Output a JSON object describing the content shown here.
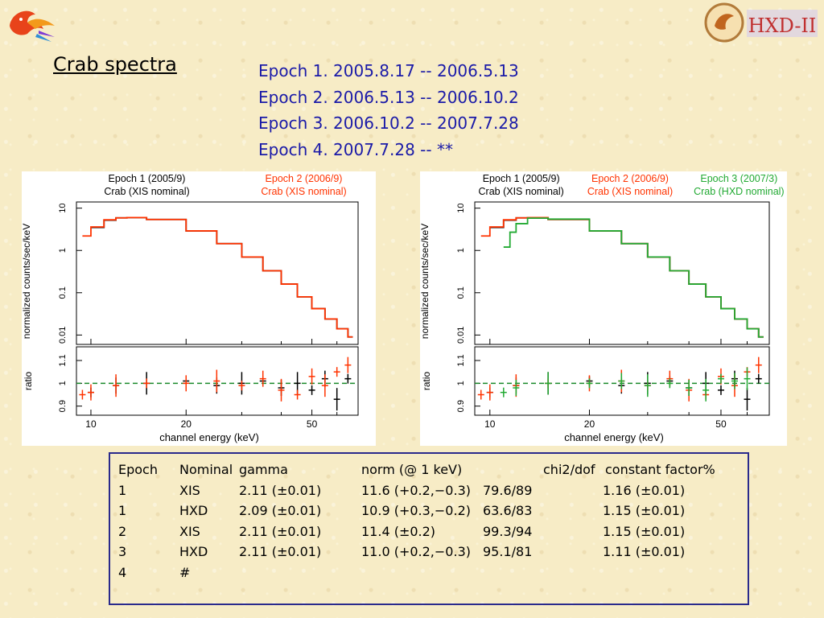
{
  "title": "Crab spectra",
  "epochs": [
    "Epoch 1. 2005.8.17 -- 2006.5.13",
    "Epoch 2. 2006.5.13 -- 2006.10.2",
    "Epoch 3. 2006.10.2 -- 2007.7.28",
    "Epoch 4. 2007.7.28 -- **"
  ],
  "logos": {
    "left": "bird-logo",
    "right_text": "HXD-II"
  },
  "chart_data": [
    {
      "type": "line",
      "legend": [
        {
          "line1": "Epoch 1 (2005/9)",
          "line2": "Crab (XIS nominal)",
          "color": "#000000"
        },
        {
          "line1": "Epoch 2 (2006/9)",
          "line2": "Crab (XIS nominal)",
          "color": "#ff3300"
        }
      ],
      "ylabel_top": "normalized counts/sec/keV",
      "ylabel_bottom": "ratio",
      "xlabel": "channel energy (keV)",
      "x_scale": "log",
      "xlim": [
        9,
        70
      ],
      "x_ticks": [
        "10",
        "20",
        "50"
      ],
      "ytop_scale": "log",
      "ytop_ticks": [
        "10",
        "1",
        "0.1",
        "0.01"
      ],
      "ybot_ticks": [
        "1.1",
        "1",
        "0.9"
      ],
      "series": [
        {
          "color": "#000000",
          "x": [
            10,
            11,
            12,
            13,
            15,
            20,
            25,
            30,
            35,
            40,
            45,
            50,
            55,
            60,
            65
          ],
          "y": [
            3.5,
            5.2,
            5.9,
            6.0,
            5.4,
            2.9,
            1.45,
            0.7,
            0.33,
            0.16,
            0.08,
            0.042,
            0.024,
            0.014,
            0.009
          ]
        },
        {
          "color": "#ff3300",
          "x": [
            9.4,
            10,
            11,
            12,
            13,
            15,
            20,
            25,
            30,
            35,
            40,
            45,
            50,
            55,
            60,
            65
          ],
          "y": [
            2.2,
            3.6,
            5.3,
            5.9,
            6.0,
            5.4,
            2.9,
            1.45,
            0.7,
            0.33,
            0.16,
            0.08,
            0.042,
            0.024,
            0.014,
            0.009
          ]
        }
      ],
      "ratio_series": [
        {
          "color": "#000000",
          "x": [
            10,
            12,
            15,
            20,
            25,
            30,
            35,
            40,
            45,
            50,
            55,
            60,
            65
          ],
          "y": [
            0.96,
            0.99,
            1.0,
            1.01,
            0.99,
            1.0,
            1.01,
            0.98,
            1.0,
            0.97,
            1.02,
            0.93,
            1.02
          ]
        },
        {
          "color": "#ff3300",
          "x": [
            9.4,
            10,
            12,
            15,
            20,
            25,
            30,
            35,
            40,
            45,
            50,
            55,
            60,
            65
          ],
          "y": [
            0.95,
            0.96,
            0.99,
            1.0,
            1.0,
            1.01,
            0.99,
            1.02,
            0.97,
            0.95,
            1.03,
            0.99,
            1.05,
            1.08
          ]
        }
      ],
      "ratio_reference": 1.0
    },
    {
      "type": "line",
      "legend": [
        {
          "line1": "Epoch 1 (2005/9)",
          "line2": "Crab (XIS nominal)",
          "color": "#000000"
        },
        {
          "line1": "Epoch 2 (2006/9)",
          "line2": "Crab (XIS nominal)",
          "color": "#ff3300"
        },
        {
          "line1": "Epoch 3 (2007/3)",
          "line2": "Crab (HXD nominal)",
          "color": "#22aa33"
        }
      ],
      "ylabel_top": "normalized counts/sec/keV",
      "ylabel_bottom": "ratio",
      "xlabel": "channel energy (keV)",
      "x_scale": "log",
      "xlim": [
        9,
        70
      ],
      "x_ticks": [
        "10",
        "20",
        "50"
      ],
      "ytop_scale": "log",
      "ytop_ticks": [
        "10",
        "1",
        "0.1",
        "0.01"
      ],
      "ybot_ticks": [
        "1.1",
        "1",
        "0.9"
      ],
      "series": [
        {
          "color": "#000000",
          "x": [
            10,
            11,
            12,
            13,
            15,
            20,
            25,
            30,
            35,
            40,
            45,
            50,
            55,
            60,
            65
          ],
          "y": [
            3.5,
            5.2,
            5.9,
            6.0,
            5.4,
            2.9,
            1.45,
            0.7,
            0.33,
            0.16,
            0.08,
            0.042,
            0.024,
            0.014,
            0.009
          ]
        },
        {
          "color": "#ff3300",
          "x": [
            9.4,
            10,
            11,
            12,
            13,
            15,
            20,
            25,
            30,
            35,
            40,
            45,
            50,
            55,
            60,
            65
          ],
          "y": [
            2.2,
            3.6,
            5.3,
            5.9,
            6.0,
            5.4,
            2.9,
            1.45,
            0.7,
            0.33,
            0.16,
            0.08,
            0.042,
            0.024,
            0.014,
            0.009
          ]
        },
        {
          "color": "#22aa33",
          "x": [
            11,
            11.5,
            12,
            13,
            15,
            20,
            25,
            30,
            35,
            40,
            45,
            50,
            55,
            60,
            65
          ],
          "y": [
            1.2,
            2.7,
            4.3,
            5.8,
            5.5,
            2.9,
            1.45,
            0.7,
            0.33,
            0.16,
            0.08,
            0.042,
            0.024,
            0.014,
            0.009
          ]
        }
      ],
      "ratio_series": [
        {
          "color": "#000000",
          "x": [
            10,
            12,
            15,
            20,
            25,
            30,
            35,
            40,
            45,
            50,
            55,
            60,
            65
          ],
          "y": [
            0.96,
            0.99,
            1.0,
            1.01,
            0.99,
            1.0,
            1.01,
            0.98,
            1.0,
            0.97,
            1.02,
            0.93,
            1.02
          ]
        },
        {
          "color": "#ff3300",
          "x": [
            9.4,
            10,
            12,
            15,
            20,
            25,
            30,
            35,
            40,
            45,
            50,
            55,
            60,
            65
          ],
          "y": [
            0.95,
            0.96,
            0.99,
            1.0,
            1.0,
            1.01,
            0.99,
            1.02,
            0.97,
            0.95,
            1.03,
            0.99,
            1.05,
            1.08
          ]
        },
        {
          "color": "#22aa33",
          "x": [
            11,
            12,
            15,
            20,
            25,
            30,
            35,
            40,
            45,
            50,
            55,
            60
          ],
          "y": [
            0.96,
            0.98,
            1.0,
            1.0,
            1.01,
            0.99,
            1.0,
            0.98,
            0.97,
            1.02,
            1.01,
            1.02
          ]
        }
      ],
      "ratio_reference": 1.0
    },
    {
      "type": "table",
      "headers": [
        "Epoch",
        "Nominal",
        "gamma",
        "norm (@ 1 keV)",
        "chi2/dof",
        "constant factor%"
      ],
      "rows": [
        [
          "1",
          "XIS",
          "2.11 (±0.01)",
          "11.6 (+0.2,−0.3)",
          "79.6/89",
          "1.16 (±0.01)"
        ],
        [
          "1",
          "HXD",
          "2.09 (±0.01)",
          "10.9 (+0.3,−0.2)",
          "63.6/83",
          "1.15 (±0.01)"
        ],
        [
          "2",
          "XIS",
          "2.11 (±0.01)",
          "11.4 (±0.2)",
          "99.3/94",
          "1.15 (±0.01)"
        ],
        [
          "3",
          "HXD",
          "2.11 (±0.01)",
          "11.0 (+0.2,−0.3)",
          "95.1/81",
          "1.11 (±0.01)"
        ],
        [
          "4",
          "#",
          "",
          "",
          "",
          ""
        ]
      ]
    }
  ]
}
